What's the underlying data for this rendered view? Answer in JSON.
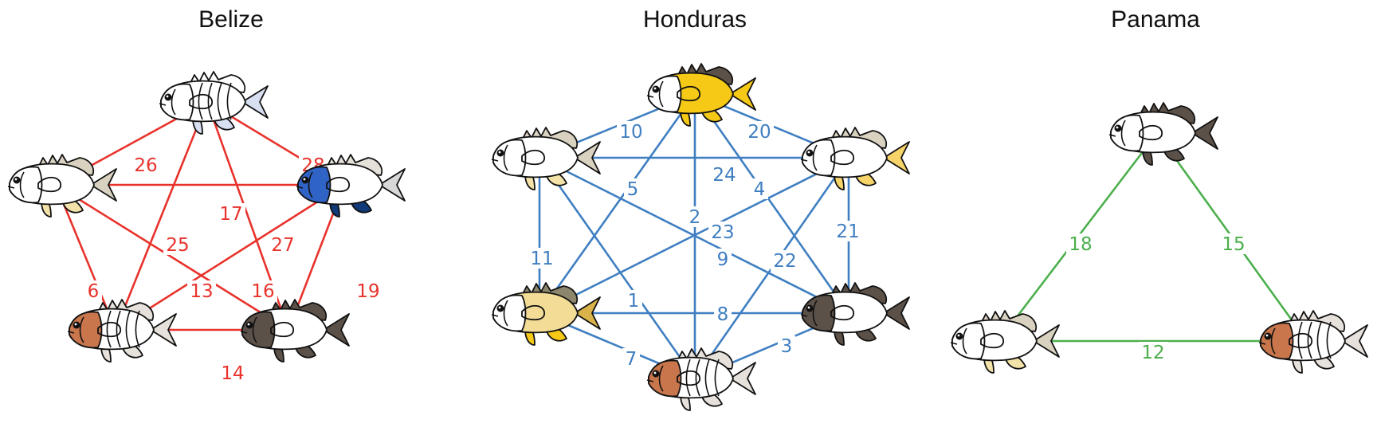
{
  "panels": [
    {
      "title": "Belize",
      "color": "#e8322b",
      "fish": [
        {
          "body": "#ffffff",
          "head": "#ffffff",
          "fin": "#d7dff1",
          "tail": "#d7dff1",
          "dorsal": "#ffffff",
          "bars": true
        },
        {
          "body": "#ffffff",
          "head": "#ffffff",
          "fin": "#f3e3a8",
          "tail": "#d9d2c0",
          "dorsal": "#d9d2c0",
          "bars": false
        },
        {
          "body": "#ffffff",
          "head": "#2f63c6",
          "fin": "#123a78",
          "tail": "#d7d7d7",
          "dorsal": "#e5e1d9",
          "bars": false
        },
        {
          "body": "#ffffff",
          "head": "#c9764d",
          "fin": "#e7e1dc",
          "tail": "#e7e1dc",
          "dorsal": "#e7e1dc",
          "bars": true
        },
        {
          "body": "#ffffff",
          "head": "#5b5149",
          "fin": "#5b5149",
          "tail": "#5b5149",
          "dorsal": "#5b5149",
          "bars": false
        }
      ],
      "edges": [
        {
          "label": "26"
        },
        {
          "label": "28"
        },
        {
          "label": "17"
        },
        {
          "label": "25"
        },
        {
          "label": "27"
        },
        {
          "label": "6"
        },
        {
          "label": "13"
        },
        {
          "label": "16"
        },
        {
          "label": "19"
        },
        {
          "label": "14"
        }
      ]
    },
    {
      "title": "Honduras",
      "color": "#3f7fc1",
      "fish": [
        {
          "body": "#f6c916",
          "head": "#ffffff",
          "fin": "#f6c916",
          "tail": "#f6c916",
          "dorsal": "#5b5149",
          "bars": false
        },
        {
          "body": "#ffffff",
          "head": "#ffffff",
          "fin": "#f3e3a8",
          "tail": "#d9d2c0",
          "dorsal": "#d9d2c0",
          "bars": false
        },
        {
          "body": "#ffffff",
          "head": "#ffffff",
          "fin": "#f6d46a",
          "tail": "#f6d46a",
          "dorsal": "#d9d2c0",
          "bars": false
        },
        {
          "body": "#f2dc96",
          "head": "#ffffff",
          "fin": "#f6c916",
          "tail": "#d9b24a",
          "dorsal": "#8c866d",
          "bars": false
        },
        {
          "body": "#ffffff",
          "head": "#5b5149",
          "fin": "#5b5149",
          "tail": "#5b5149",
          "dorsal": "#5b5149",
          "bars": false
        },
        {
          "body": "#ffffff",
          "head": "#c9764d",
          "fin": "#e7e1dc",
          "tail": "#e7e1dc",
          "dorsal": "#e7e1dc",
          "bars": true
        }
      ],
      "edges": [
        {
          "label": "10"
        },
        {
          "label": "20"
        },
        {
          "label": "5"
        },
        {
          "label": "2"
        },
        {
          "label": "4"
        },
        {
          "label": "24"
        },
        {
          "label": "23"
        },
        {
          "label": "9"
        },
        {
          "label": "22"
        },
        {
          "label": "11"
        },
        {
          "label": "21"
        },
        {
          "label": "1"
        },
        {
          "label": "8"
        },
        {
          "label": "7"
        },
        {
          "label": "3"
        }
      ]
    },
    {
      "title": "Panama",
      "color": "#4caf4c",
      "fish": [
        {
          "body": "#ffffff",
          "head": "#ffffff",
          "fin": "#5b5149",
          "tail": "#5b5149",
          "dorsal": "#5b5149",
          "bars": false
        },
        {
          "body": "#ffffff",
          "head": "#ffffff",
          "fin": "#f3e3a8",
          "tail": "#d9d2c0",
          "dorsal": "#d9d2c0",
          "bars": false
        },
        {
          "body": "#ffffff",
          "head": "#c9764d",
          "fin": "#e7e1dc",
          "tail": "#e7e1dc",
          "dorsal": "#e7e1dc",
          "bars": true
        }
      ],
      "edges": [
        {
          "label": "18"
        },
        {
          "label": "15"
        },
        {
          "label": "12"
        }
      ]
    }
  ]
}
